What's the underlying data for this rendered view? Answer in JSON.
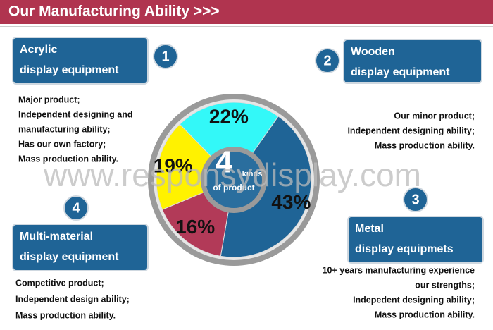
{
  "header": {
    "title": "Our Manufacturing Ability >>>"
  },
  "watermark": "www.responsydisplay.com",
  "chart_data": {
    "type": "pie",
    "categories": [
      "Acrylic",
      "Wooden",
      "Metal",
      "Multi-material"
    ],
    "values": [
      43,
      16,
      19,
      22
    ],
    "value_labels": [
      "43%",
      "16%",
      "19%",
      "22%"
    ],
    "colors": [
      "#1f6496",
      "#b23a58",
      "#fff200",
      "#33f8f8"
    ],
    "center_number": "4",
    "center_lines": [
      "kinds",
      "of product"
    ]
  },
  "sections": [
    {
      "number": "1",
      "title": [
        "Acrylic",
        "display equipment"
      ],
      "lines": [
        "Major product;",
        "Independent designing and",
        "manufacturing ability;",
        "Has our own factory;",
        "Mass production ability."
      ]
    },
    {
      "number": "2",
      "title": [
        "Wooden",
        "display equipment"
      ],
      "lines": [
        "Our minor product;",
        "Independent designing ability;",
        "Mass production ability."
      ]
    },
    {
      "number": "3",
      "title": [
        "Metal",
        "display equipmets"
      ],
      "lines": [
        "10+ years manufacturing experience",
        "our strengths;",
        "Indepedent designing ability;",
        "Mass production ability."
      ]
    },
    {
      "number": "4",
      "title": [
        "Multi-material",
        "display equipment"
      ],
      "lines": [
        "Competitive product;",
        "Independent design ability;",
        "Mass production ability."
      ]
    }
  ]
}
